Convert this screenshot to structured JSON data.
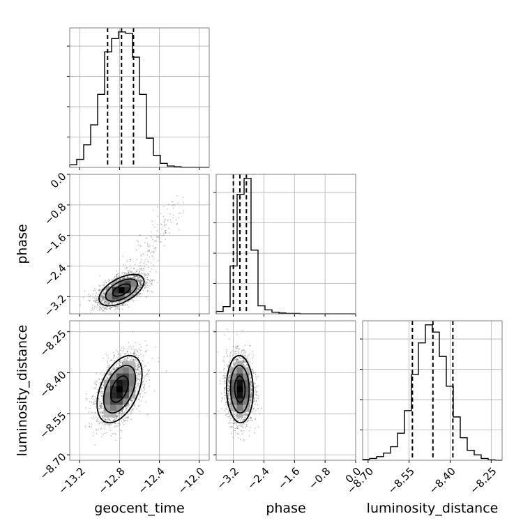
{
  "chart_data": {
    "type": "corner",
    "parameters": [
      "geocent_time",
      "phase",
      "luminosity_distance"
    ],
    "axis_labels": {
      "geocent_time": "geocent_time",
      "phase": "phase",
      "luminosity_distance": "luminosity_distance"
    },
    "ranges": {
      "geocent_time": [
        -13.3,
        -11.9
      ],
      "phase": [
        -3.65,
        0.0
      ],
      "luminosity_distance": [
        -8.72,
        -8.21
      ]
    },
    "ticks": {
      "geocent_time": [
        "−13.2",
        "−12.8",
        "−12.4",
        "−12.0"
      ],
      "phase": [
        "−3.2",
        "−2.4",
        "−1.6",
        "−0.8",
        "0.0"
      ],
      "luminosity_distance": [
        "−8.70",
        "−8.55",
        "−8.40",
        "−8.25"
      ]
    },
    "tick_values": {
      "geocent_time": [
        -13.2,
        -12.8,
        -12.4,
        -12.0
      ],
      "phase": [
        -3.2,
        -2.4,
        -1.6,
        -0.8,
        0.0
      ],
      "luminosity_distance": [
        -8.7,
        -8.55,
        -8.4,
        -8.25
      ]
    },
    "quantiles": {
      "geocent_time": [
        -12.92,
        -12.78,
        -12.66
      ],
      "phase": [
        -3.2,
        -3.03,
        -2.86
      ],
      "luminosity_distance": [
        -8.538,
        -8.463,
        -8.39
      ]
    },
    "histograms": {
      "geocent_time": {
        "bins": [
          -13.3,
          -13.23,
          -13.16,
          -13.09,
          -13.02,
          -12.95,
          -12.88,
          -12.81,
          -12.74,
          -12.67,
          -12.6,
          -12.53,
          -12.46,
          -12.39,
          -12.32,
          -12.25,
          -12.18,
          -12.11,
          -12.04,
          -11.97,
          -11.9
        ],
        "counts": [
          2,
          6,
          17,
          32,
          55,
          87,
          97,
          102,
          101,
          83,
          55,
          22,
          9,
          3,
          1,
          0.5,
          0,
          0,
          0,
          0
        ]
      },
      "phase": {
        "bins": [
          -3.65,
          -3.4675,
          -3.285,
          -3.1025,
          -2.92,
          -2.7375,
          -2.555,
          -2.3725,
          -2.19,
          -2.0075,
          -1.825,
          -1.6425,
          -1.46,
          -1.2775,
          -1.095,
          -0.9125,
          -0.73,
          -0.5475,
          -0.365,
          -0.1825,
          0.0
        ],
        "counts": [
          3,
          9,
          60,
          150,
          170,
          80,
          10,
          5,
          2,
          1,
          0.5,
          0.5,
          0,
          0,
          0,
          0,
          0,
          0,
          0,
          0
        ]
      },
      "luminosity_distance": {
        "bins": [
          -8.72,
          -8.6945,
          -8.669,
          -8.6435,
          -8.618,
          -8.5925,
          -8.567,
          -8.5415,
          -8.516,
          -8.4905,
          -8.465,
          -8.4395,
          -8.414,
          -8.3885,
          -8.363,
          -8.3375,
          -8.312,
          -8.2865,
          -8.261,
          -8.2355,
          -8.21
        ],
        "counts": [
          1,
          2,
          4,
          8,
          15,
          30,
          55,
          95,
          130,
          150,
          142,
          115,
          82,
          48,
          25,
          11,
          6,
          2,
          0.5,
          0
        ]
      }
    },
    "panels_2d": [
      {
        "x": "geocent_time",
        "y": "phase",
        "center": [
          -12.78,
          -3.03
        ],
        "sd": [
          0.11,
          0.2
        ],
        "corr": 0.55,
        "tail": {
          "to": [
            -12.2,
            -0.7
          ]
        }
      },
      {
        "x": "geocent_time",
        "y": "luminosity_distance",
        "center": [
          -12.8,
          -8.46
        ],
        "sd": [
          0.11,
          0.06
        ],
        "corr": 0.45
      },
      {
        "x": "phase",
        "y": "luminosity_distance",
        "center": [
          -3.03,
          -8.46
        ],
        "sd": [
          0.17,
          0.06
        ],
        "corr": -0.05
      }
    ],
    "grid": true
  }
}
